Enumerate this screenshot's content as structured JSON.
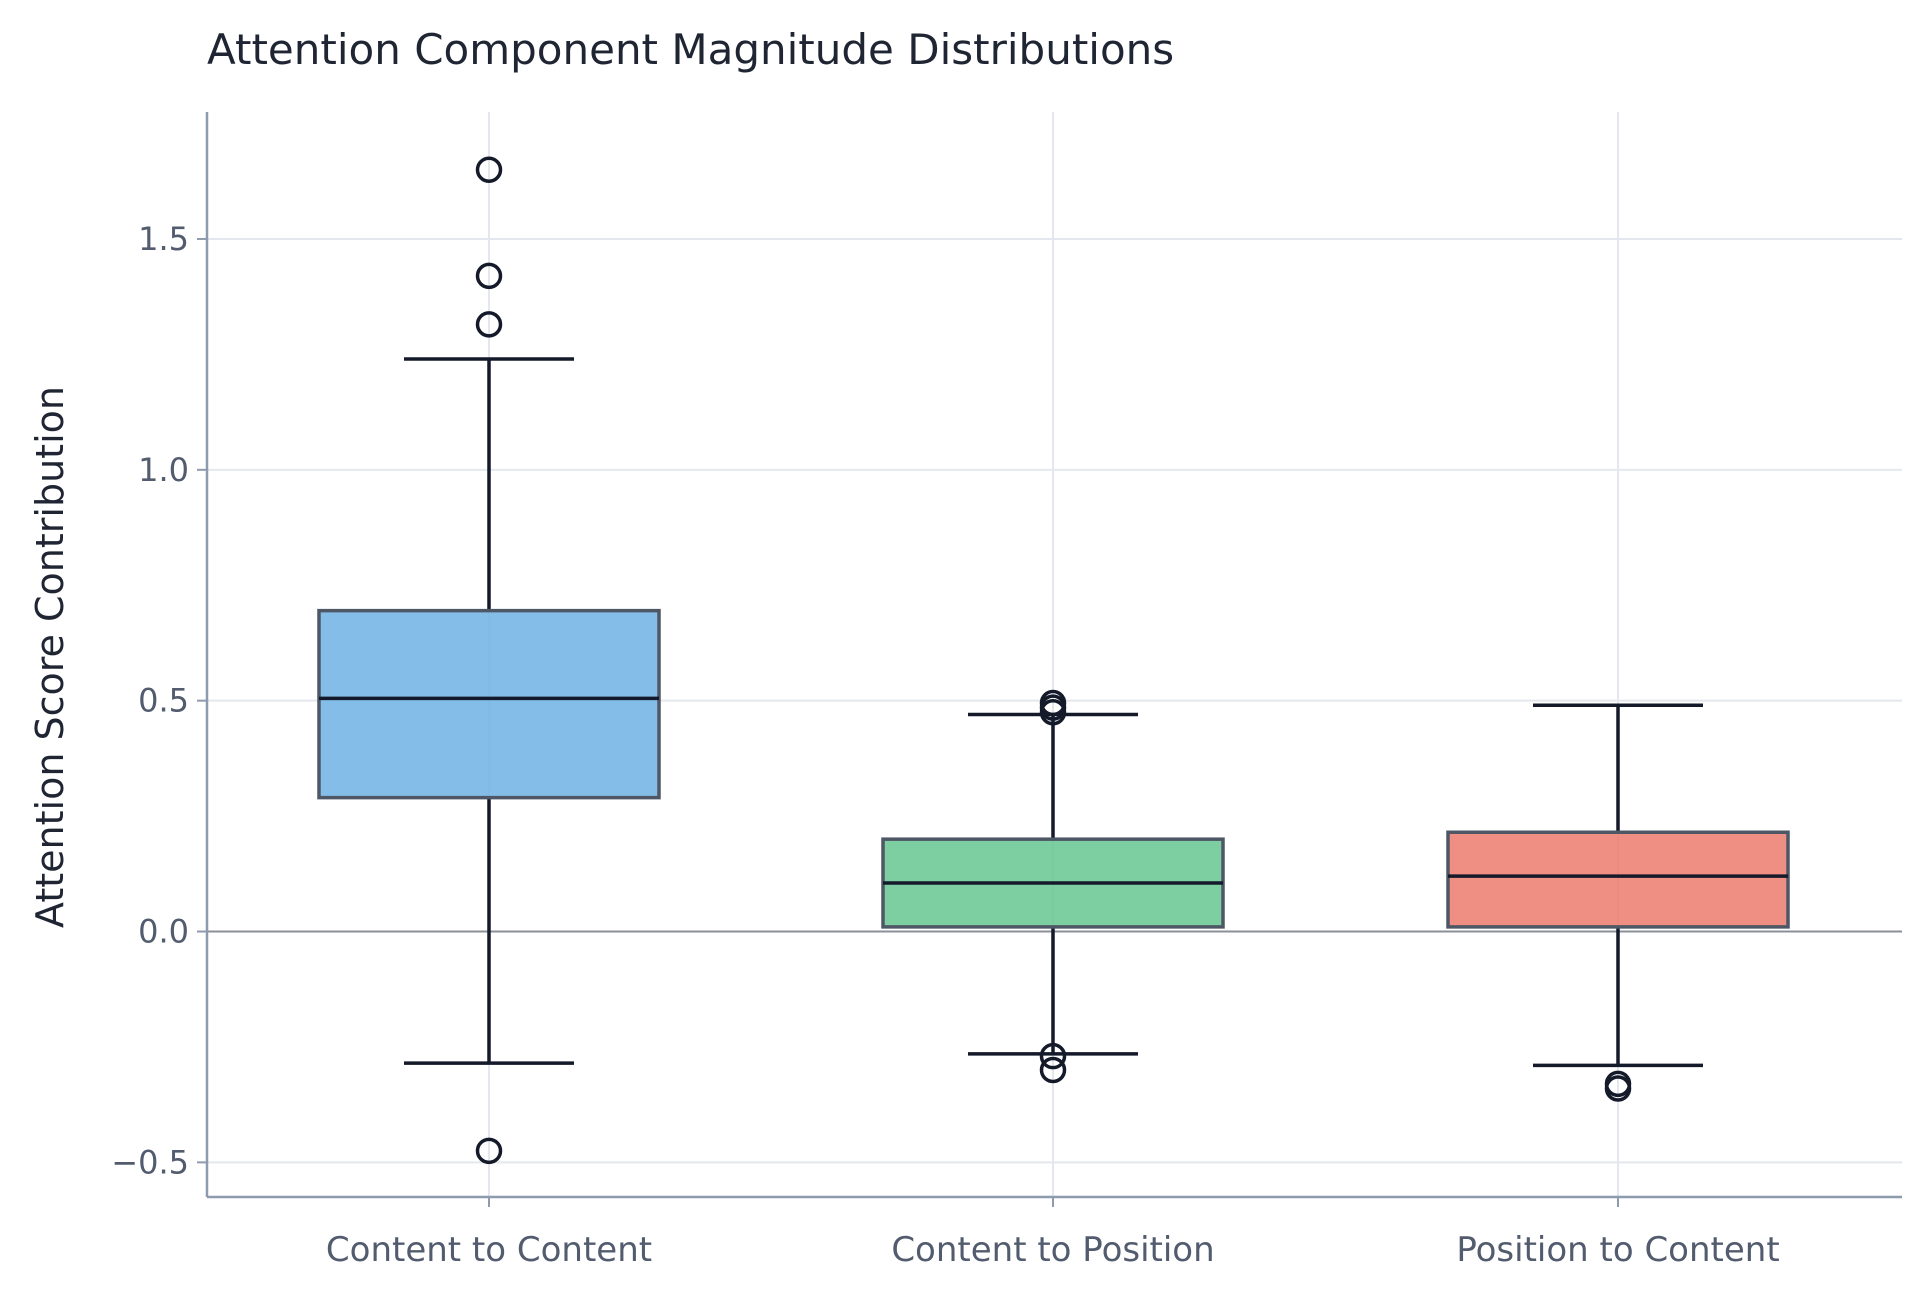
{
  "chart_data": {
    "type": "box",
    "title": "Attention Component Magnitude Distributions",
    "xlabel": "",
    "ylabel": "Attention Score Contribution",
    "ylim": [
      -0.575,
      1.775
    ],
    "yticks": [
      -0.5,
      0.0,
      0.5,
      1.0,
      1.5
    ],
    "ytick_labels": [
      "−0.5",
      "0.0",
      "0.5",
      "1.0",
      "1.5"
    ],
    "grid": true,
    "zero_line": true,
    "categories": [
      "Content to Content",
      "Content to Position",
      "Position to Content"
    ],
    "boxes": [
      {
        "name": "Content to Content",
        "color": "#6fb3e4",
        "whisker_low": -0.285,
        "q1": 0.29,
        "median": 0.505,
        "q3": 0.695,
        "whisker_high": 1.24,
        "outliers": [
          1.65,
          1.42,
          1.315,
          -0.475
        ]
      },
      {
        "name": "Content to Position",
        "color": "#66c590",
        "whisker_low": -0.265,
        "q1": 0.01,
        "median": 0.105,
        "q3": 0.2,
        "whisker_high": 0.47,
        "outliers": [
          0.495,
          0.485,
          0.475,
          -0.27,
          -0.3
        ]
      },
      {
        "name": "Position to Content",
        "color": "#ec7a6c",
        "whisker_low": -0.29,
        "q1": 0.01,
        "median": 0.12,
        "q3": 0.215,
        "whisker_high": 0.49,
        "outliers": [
          -0.33,
          -0.34
        ]
      }
    ]
  }
}
